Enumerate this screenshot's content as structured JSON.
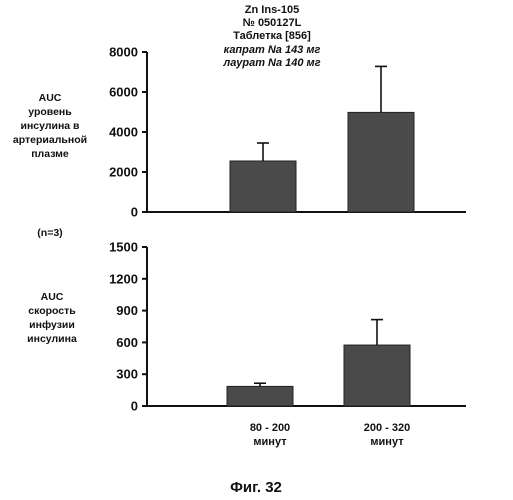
{
  "header": {
    "line1": "Zn Ins-105",
    "line2": "№ 050127L",
    "line3": "Таблетка [856]",
    "line4": "капрат Na 143 мг",
    "line5": "лаурат Na 140 мг"
  },
  "n_label": "(n=3)",
  "figure_caption": "Фиг. 32",
  "colors": {
    "bar": "#4a4a4a",
    "axis": "#111111"
  },
  "chart_data": [
    {
      "type": "bar",
      "title": "",
      "ylabel": "AUC уровень инсулина в артериальной плазме",
      "ylabel_lines": [
        "AUC",
        "уровень",
        "инсулина в",
        "артериальной",
        "плазме"
      ],
      "categories": [
        "80 - 200 минут",
        "200 - 320 минут"
      ],
      "values": [
        2550,
        4980
      ],
      "errors": [
        900,
        2300
      ],
      "ylim": [
        0,
        8000
      ],
      "yticks": [
        0,
        2000,
        4000,
        6000,
        8000
      ],
      "grid": false
    },
    {
      "type": "bar",
      "title": "",
      "ylabel": "AUC скорость инфузии инсулина",
      "ylabel_lines": [
        "AUC",
        "скорость",
        "инфузии",
        "инсулина"
      ],
      "categories": [
        "80 - 200 минут",
        "200 - 320 минут"
      ],
      "category_lines": [
        [
          "80 - 200",
          "минут"
        ],
        [
          "200 - 320",
          "минут"
        ]
      ],
      "values": [
        185,
        575
      ],
      "errors": [
        30,
        240
      ],
      "ylim": [
        0,
        1500
      ],
      "yticks": [
        0,
        300,
        600,
        900,
        1200,
        1500
      ],
      "grid": false
    }
  ]
}
